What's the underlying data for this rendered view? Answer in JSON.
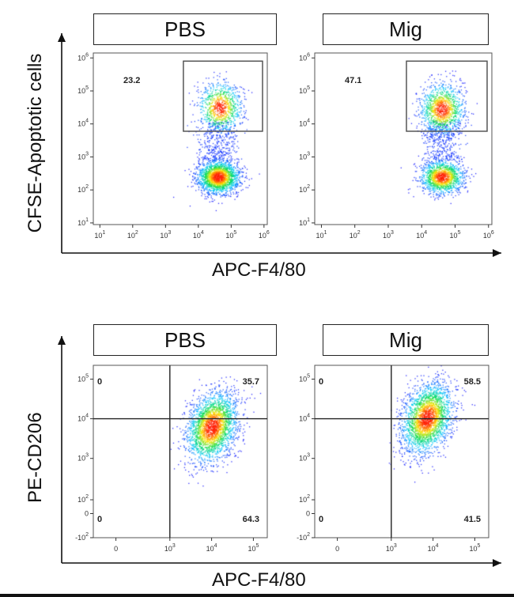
{
  "figure": {
    "top": {
      "x_axis_label": "APC-F4/80",
      "y_axis_label": "CFSE-Apoptotic cells"
    },
    "bottom": {
      "x_axis_label": "APC-F4/80",
      "y_axis_label": "PE-CD206"
    }
  },
  "chart_data": [
    {
      "type": "scatter",
      "title": "PBS",
      "panel": "top-left",
      "xlabel": "APC-F4/80",
      "ylabel": "CFSE-Apoptotic cells",
      "xscale": "log",
      "yscale": "log",
      "xticks": [
        "10^1",
        "10^2",
        "10^3",
        "10^4",
        "10^5",
        "10^6"
      ],
      "yticks": [
        "10^1",
        "10^2",
        "10^3",
        "10^4",
        "10^5",
        "10^6"
      ],
      "gate": {
        "x": [
          3500,
          1000000
        ],
        "y": [
          6000,
          800000
        ],
        "percent": "23.2"
      },
      "populations": [
        {
          "center_log": [
            4.6,
            2.4
          ],
          "fraction": 0.77
        },
        {
          "center_log": [
            4.65,
            4.5
          ],
          "fraction": 0.23
        }
      ]
    },
    {
      "type": "scatter",
      "title": "Mig",
      "panel": "top-right",
      "xlabel": "APC-F4/80",
      "ylabel": "CFSE-Apoptotic cells",
      "xscale": "log",
      "yscale": "log",
      "xticks": [
        "10^1",
        "10^2",
        "10^3",
        "10^4",
        "10^5",
        "10^6"
      ],
      "yticks": [
        "10^1",
        "10^2",
        "10^3",
        "10^4",
        "10^5",
        "10^6"
      ],
      "gate": {
        "x": [
          3500,
          1000000
        ],
        "y": [
          6000,
          800000
        ],
        "percent": "47.1"
      },
      "populations": [
        {
          "center_log": [
            4.6,
            2.4
          ],
          "fraction": 0.53
        },
        {
          "center_log": [
            4.6,
            4.45
          ],
          "fraction": 0.47
        }
      ]
    },
    {
      "type": "scatter",
      "title": "PBS",
      "panel": "bottom-left",
      "xlabel": "APC-F4/80",
      "ylabel": "PE-CD206",
      "xscale": "biexponential",
      "yscale": "biexponential",
      "xticks": [
        "0",
        "10^3",
        "10^4",
        "10^5"
      ],
      "yticks": [
        "-10^2",
        "0",
        "10^2",
        "10^3",
        "10^4",
        "10^5"
      ],
      "quadrant_split": {
        "x": 1000,
        "y": 10000
      },
      "quadrants": {
        "UL": "0",
        "UR": "35.7",
        "LL": "0",
        "LR": "64.3"
      },
      "populations": [
        {
          "center_log": [
            4.0,
            3.8
          ],
          "fraction": 1.0
        }
      ]
    },
    {
      "type": "scatter",
      "title": "Mig",
      "panel": "bottom-right",
      "xlabel": "APC-F4/80",
      "ylabel": "PE-CD206",
      "xscale": "biexponential",
      "yscale": "biexponential",
      "xticks": [
        "0",
        "10^3",
        "10^4",
        "10^5"
      ],
      "yticks": [
        "-10^2",
        "0",
        "10^2",
        "10^3",
        "10^4",
        "10^5"
      ],
      "quadrant_split": {
        "x": 1000,
        "y": 10000
      },
      "quadrants": {
        "UL": "0",
        "UR": "58.5",
        "LL": "0",
        "LR": "41.5"
      },
      "populations": [
        {
          "center_log": [
            3.85,
            4.02
          ],
          "fraction": 1.0
        }
      ]
    }
  ]
}
